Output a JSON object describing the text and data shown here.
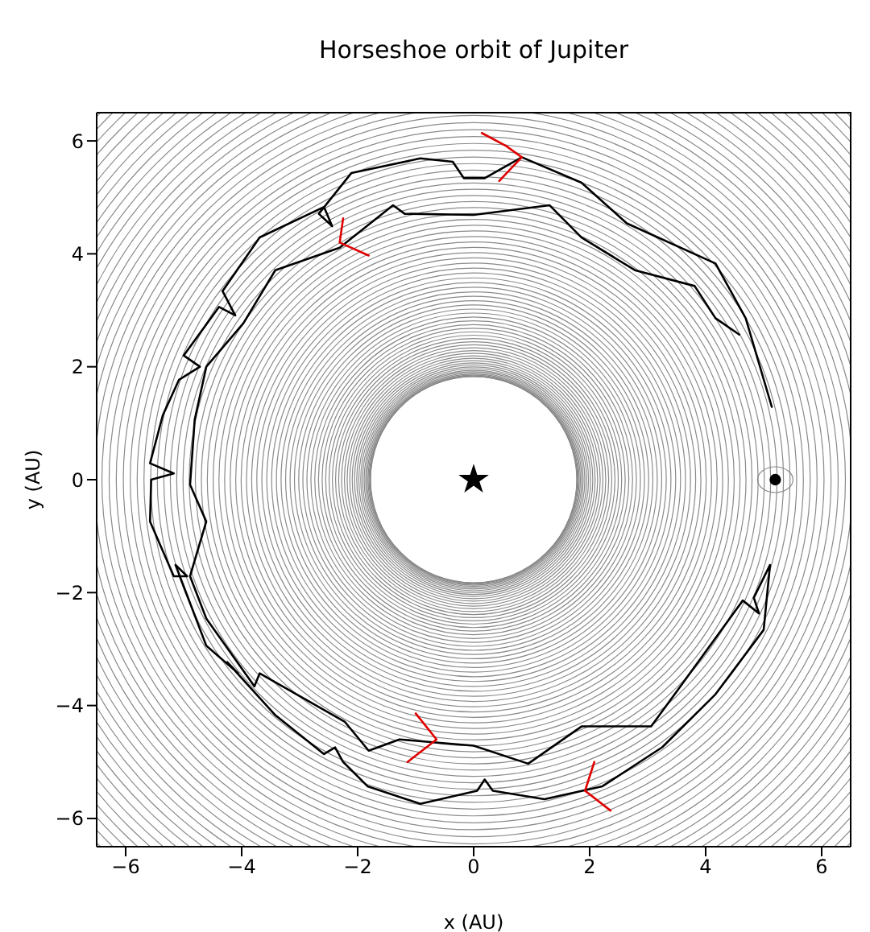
{
  "chart_data": {
    "type": "line",
    "title": "Horseshoe orbit of Jupiter",
    "xlabel": "x (AU)",
    "ylabel": "y (AU)",
    "xlim": [
      -6.5,
      6.5
    ],
    "ylim": [
      -6.5,
      6.5
    ],
    "xticks": [
      {
        "value": -6,
        "label": "−6"
      },
      {
        "value": -4,
        "label": "−4"
      },
      {
        "value": -2,
        "label": "−2"
      },
      0,
      2,
      4,
      6
    ],
    "yticks": [
      {
        "value": -6,
        "label": "−6"
      },
      {
        "value": -4,
        "label": "−4"
      },
      {
        "value": -2,
        "label": "−2"
      },
      0,
      2,
      4,
      6
    ],
    "grid": false,
    "legend": false,
    "series": [
      {
        "type": "line",
        "color": "#000000",
        "line_style": "solid",
        "x": [
          5.14,
          4.69,
          4.17,
          2.64,
          1.86,
          0.83,
          0.19,
          -0.17,
          -0.36,
          -0.92,
          -2.11,
          -2.67,
          -2.44,
          -2.58,
          -3.69,
          -4.33,
          -4.11,
          -4.39,
          -5.0,
          -4.72,
          -5.08,
          -5.36,
          -5.58,
          -5.17,
          -5.56,
          -5.58,
          -5.17,
          -4.94,
          -5.14,
          -4.61,
          -4.06,
          -4.25,
          -3.42,
          -2.58,
          -2.39,
          -2.25,
          -1.83,
          -0.92,
          0.06,
          0.19,
          0.33,
          1.22,
          2.22,
          3.25,
          4.17,
          5.0,
          5.11,
          4.83,
          4.92,
          4.64,
          3.53,
          3.06,
          1.86,
          0.94,
          0,
          -1.28,
          -1.81,
          -2.22,
          -3.69,
          -3.78,
          -4.61,
          -4.89,
          -4.61,
          -4.89,
          -4.81,
          -4.61,
          -3.97,
          -3.42,
          -2.31,
          -1.39,
          -1.19,
          0,
          1.31,
          1.86,
          2.78,
          3.81,
          4.17,
          4.58
        ],
        "values": [
          1.29,
          2.86,
          3.83,
          4.54,
          5.26,
          5.71,
          5.34,
          5.34,
          5.63,
          5.69,
          5.43,
          4.71,
          4.49,
          4.83,
          4.29,
          3.34,
          2.91,
          3.06,
          2.2,
          2.0,
          1.77,
          1.14,
          0.29,
          0.11,
          0,
          -0.74,
          -1.71,
          -1.71,
          -1.51,
          -2.94,
          -3.43,
          -3.23,
          -4.17,
          -4.86,
          -4.74,
          -5.0,
          -5.43,
          -5.74,
          -5.51,
          -5.31,
          -5.51,
          -5.66,
          -5.43,
          -4.74,
          -3.8,
          -2.66,
          -1.51,
          -2.09,
          -2.37,
          -2.14,
          -3.71,
          -4.37,
          -4.37,
          -5.03,
          -4.71,
          -4.6,
          -4.8,
          -4.29,
          -3.43,
          -3.66,
          -2.46,
          -1.71,
          -0.74,
          -0.09,
          1.06,
          2.0,
          2.77,
          3.71,
          4.11,
          4.86,
          4.71,
          4.69,
          4.86,
          4.29,
          3.71,
          3.43,
          2.86,
          2.57
        ]
      },
      {
        "type": "line",
        "color": "#e00000",
        "line_style": "solid",
        "x": [
          0.14,
          0.56,
          0.83,
          0.67,
          0.44
        ],
        "values": [
          6.14,
          5.91,
          5.71,
          5.54,
          5.29
        ]
      },
      {
        "type": "line",
        "color": "#e00000",
        "line_style": "solid",
        "x": [
          -2.25,
          -2.31,
          -1.81
        ],
        "values": [
          4.63,
          4.2,
          3.97
        ]
      },
      {
        "type": "line",
        "color": "#e00000",
        "line_style": "solid",
        "x": [
          -1.0,
          -0.64,
          -1.14
        ],
        "values": [
          -4.14,
          -4.6,
          -5.0
        ]
      },
      {
        "type": "line",
        "color": "#e00000",
        "line_style": "solid",
        "x": [
          2.08,
          1.92,
          2.36
        ],
        "values": [
          -5.0,
          -5.51,
          -5.86
        ]
      },
      {
        "type": "scatter",
        "color": "#000000",
        "marker": "star",
        "x": [
          0
        ],
        "values": [
          0
        ]
      },
      {
        "type": "scatter",
        "color": "#000000",
        "marker": "circle",
        "x": [
          5.2
        ],
        "values": [
          0
        ]
      }
    ]
  }
}
